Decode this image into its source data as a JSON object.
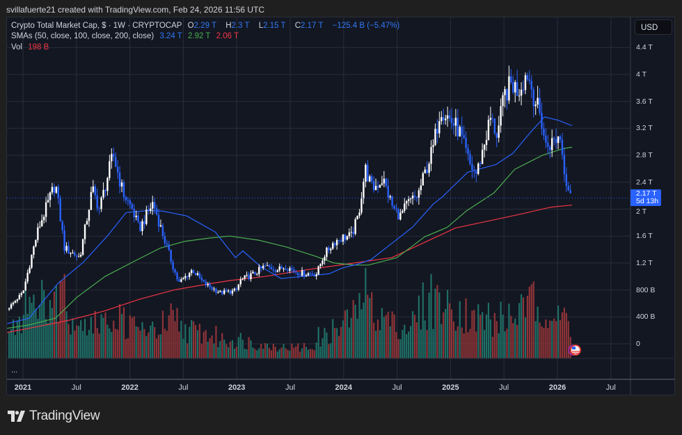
{
  "credit": "svillafuerte21 created with TradingView.com, Feb 24, 2026 11:56 UTC",
  "legend": {
    "symbol": "Crypto Total Market Cap, $ · 1W · CRYPTOCAP",
    "o_label": "O",
    "o": "2.29 T",
    "h_label": "H",
    "h": "2.3 T",
    "l_label": "L",
    "l": "2.15 T",
    "c_label": "C",
    "c": "2.17 T",
    "change": "−125.4 B (−5.47%)",
    "sma_label": "SMAs (50, close, 100, close, 200, close)",
    "sma50": "3.24 T",
    "sma100": "2.92 T",
    "sma200": "2.06 T",
    "vol_label": "Vol",
    "vol": "198 B"
  },
  "currency_button": "USD",
  "price_axis": [
    "4.4 T",
    "4 T",
    "3.6 T",
    "3.2 T",
    "2.8 T",
    "2.4 T",
    "2 T",
    "1.6 T",
    "1.2 T",
    "800 B",
    "400 B",
    "0"
  ],
  "last_price": {
    "value": "2.17 T",
    "countdown": "5d 13h"
  },
  "time_axis": [
    "2021",
    "Jul",
    "2022",
    "Jul",
    "2023",
    "Jul",
    "2024",
    "Jul",
    "2025",
    "Jul",
    "2026",
    "Jul"
  ],
  "more_indicator": "...",
  "brand": "TradingView",
  "colors": {
    "up_candle": "#ffffff",
    "down_candle": "#2962ff",
    "sma50": "#2962ff",
    "sma100": "#4caf50",
    "sma200": "#f23645",
    "vol_up": "#1f6f66",
    "vol_down": "#8f3438",
    "background": "#131722",
    "grid": "#2a2e39"
  },
  "chart_data": {
    "type": "candlestick",
    "timeframe": "1W",
    "unit": "T USD",
    "ylim": [
      -0.2,
      4.6
    ],
    "grid": true,
    "close_path": [
      [
        "2020-11-07",
        0.51
      ],
      [
        "2021-01-01",
        0.76
      ],
      [
        "2021-01-29",
        1.28
      ],
      [
        "2021-02-22",
        1.7
      ],
      [
        "2021-04-22",
        2.39
      ],
      [
        "2021-05-23",
        1.42
      ],
      [
        "2021-07-14",
        1.28
      ],
      [
        "2021-08-26",
        2.3
      ],
      [
        "2021-09-19",
        2.0
      ],
      [
        "2021-11-05",
        2.81
      ],
      [
        "2021-12-09",
        2.24
      ],
      [
        "2022-01-09",
        2.0
      ],
      [
        "2022-02-02",
        1.7
      ],
      [
        "2022-03-21",
        2.1
      ],
      [
        "2022-04-26",
        1.59
      ],
      [
        "2022-06-01",
        1.1
      ],
      [
        "2022-06-17",
        0.9
      ],
      [
        "2022-08-03",
        1.1
      ],
      [
        "2022-09-10",
        0.9
      ],
      [
        "2022-11-06",
        0.76
      ],
      [
        "2022-12-19",
        0.78
      ],
      [
        "2023-01-01",
        0.8
      ],
      [
        "2023-01-12",
        0.94
      ],
      [
        "2023-03-01",
        1.04
      ],
      [
        "2023-04-06",
        1.15
      ],
      [
        "2023-05-23",
        1.1
      ],
      [
        "2023-06-16",
        1.15
      ],
      [
        "2023-08-03",
        1.05
      ],
      [
        "2023-10-01",
        1.04
      ],
      [
        "2023-10-25",
        1.31
      ],
      [
        "2023-11-30",
        1.52
      ],
      [
        "2024-01-03",
        1.59
      ],
      [
        "2024-01-27",
        1.6
      ],
      [
        "2024-02-20",
        1.9
      ],
      [
        "2024-03-15",
        2.6
      ],
      [
        "2024-04-08",
        2.3
      ],
      [
        "2024-05-14",
        2.45
      ],
      [
        "2024-06-19",
        2.0
      ],
      [
        "2024-07-13",
        1.9
      ],
      [
        "2024-08-06",
        2.08
      ],
      [
        "2024-09-10",
        2.2
      ],
      [
        "2024-11-03",
        2.93
      ],
      [
        "2024-11-27",
        3.52
      ],
      [
        "2024-12-26",
        3.35
      ],
      [
        "2025-01-30",
        3.17
      ],
      [
        "2025-03-07",
        2.66
      ],
      [
        "2025-03-31",
        2.52
      ],
      [
        "2025-04-24",
        2.93
      ],
      [
        "2025-05-17",
        3.35
      ],
      [
        "2025-06-10",
        3.1
      ],
      [
        "2025-07-04",
        3.69
      ],
      [
        "2025-07-28",
        3.87
      ],
      [
        "2025-08-20",
        3.76
      ],
      [
        "2025-09-20",
        4.04
      ],
      [
        "2025-10-14",
        3.66
      ],
      [
        "2025-11-06",
        3.35
      ],
      [
        "2025-11-23",
        2.93
      ],
      [
        "2025-12-17",
        3.0
      ],
      [
        "2026-01-10",
        3.1
      ],
      [
        "2026-01-22",
        2.66
      ],
      [
        "2026-02-03",
        2.38
      ],
      [
        "2026-02-20",
        2.17
      ]
    ],
    "sma50": [
      [
        "2020-11-07",
        0.3
      ],
      [
        "2021-01-22",
        0.38
      ],
      [
        "2021-05-01",
        0.9
      ],
      [
        "2021-07-26",
        1.21
      ],
      [
        "2021-10-14",
        1.59
      ],
      [
        "2021-12-20",
        1.95
      ],
      [
        "2022-03-08",
        1.98
      ],
      [
        "2022-04-24",
        1.97
      ],
      [
        "2022-07-14",
        1.9
      ],
      [
        "2022-10-20",
        1.66
      ],
      [
        "2022-12-28",
        1.28
      ],
      [
        "2023-01-22",
        1.38
      ],
      [
        "2023-03-23",
        1.15
      ],
      [
        "2023-06-01",
        0.97
      ],
      [
        "2023-09-26",
        1.02
      ],
      [
        "2023-11-12",
        1.04
      ],
      [
        "2023-12-30",
        1.13
      ],
      [
        "2024-02-16",
        1.18
      ],
      [
        "2024-04-03",
        1.25
      ],
      [
        "2024-06-13",
        1.49
      ],
      [
        "2024-08-23",
        1.73
      ],
      [
        "2024-11-03",
        2.08
      ],
      [
        "2024-12-03",
        2.18
      ],
      [
        "2025-03-01",
        2.55
      ],
      [
        "2025-06-04",
        2.66
      ],
      [
        "2025-08-02",
        2.83
      ],
      [
        "2025-10-01",
        3.14
      ],
      [
        "2025-11-18",
        3.37
      ],
      [
        "2026-01-04",
        3.32
      ],
      [
        "2026-01-27",
        3.28
      ],
      [
        "2026-02-20",
        3.24
      ]
    ],
    "sma100": [
      [
        "2020-11-07",
        0.23
      ],
      [
        "2021-01-22",
        0.28
      ],
      [
        "2021-04-22",
        0.38
      ],
      [
        "2021-07-04",
        0.69
      ],
      [
        "2021-10-08",
        1.0
      ],
      [
        "2022-01-09",
        1.21
      ],
      [
        "2022-04-14",
        1.42
      ],
      [
        "2022-07-06",
        1.52
      ],
      [
        "2022-09-28",
        1.57
      ],
      [
        "2022-12-08",
        1.6
      ],
      [
        "2023-03-16",
        1.54
      ],
      [
        "2023-06-18",
        1.44
      ],
      [
        "2023-09-21",
        1.31
      ],
      [
        "2023-11-30",
        1.2
      ],
      [
        "2024-02-08",
        1.17
      ],
      [
        "2024-03-26",
        1.17
      ],
      [
        "2024-07-01",
        1.28
      ],
      [
        "2024-10-04",
        1.59
      ],
      [
        "2024-12-20",
        1.73
      ],
      [
        "2025-02-23",
        1.97
      ],
      [
        "2025-05-29",
        2.24
      ],
      [
        "2025-08-08",
        2.59
      ],
      [
        "2025-11-11",
        2.8
      ],
      [
        "2026-01-22",
        2.9
      ],
      [
        "2026-02-20",
        2.92
      ]
    ],
    "sma200": [
      [
        "2020-11-07",
        0.17
      ],
      [
        "2021-01-22",
        0.23
      ],
      [
        "2021-06-08",
        0.35
      ],
      [
        "2021-10-08",
        0.49
      ],
      [
        "2022-02-02",
        0.66
      ],
      [
        "2022-06-01",
        0.8
      ],
      [
        "2022-09-28",
        0.89
      ],
      [
        "2022-12-08",
        0.94
      ],
      [
        "2023-04-06",
        1.0
      ],
      [
        "2023-08-27",
        1.1
      ],
      [
        "2024-01-20",
        1.19
      ],
      [
        "2024-06-13",
        1.28
      ],
      [
        "2024-11-14",
        1.59
      ],
      [
        "2025-01-18",
        1.72
      ],
      [
        "2025-05-17",
        1.83
      ],
      [
        "2025-09-01",
        1.93
      ],
      [
        "2025-12-10",
        2.03
      ],
      [
        "2026-02-20",
        2.06
      ]
    ],
    "volume_unit": "B",
    "volume_level": [
      [
        "2020-11-07",
        120
      ],
      [
        "2021-01-15",
        300
      ],
      [
        "2021-05-20",
        330
      ],
      [
        "2021-08-01",
        180
      ],
      [
        "2021-11-15",
        230
      ],
      [
        "2022-03-01",
        150
      ],
      [
        "2022-06-15",
        190
      ],
      [
        "2022-11-10",
        110
      ],
      [
        "2023-03-01",
        90
      ],
      [
        "2023-09-01",
        60
      ],
      [
        "2024-01-01",
        200
      ],
      [
        "2024-03-15",
        330
      ],
      [
        "2024-07-15",
        170
      ],
      [
        "2024-11-15",
        350
      ],
      [
        "2025-03-01",
        250
      ],
      [
        "2025-07-01",
        200
      ],
      [
        "2025-10-10",
        350
      ],
      [
        "2026-01-01",
        230
      ],
      [
        "2026-02-20",
        198
      ]
    ]
  }
}
